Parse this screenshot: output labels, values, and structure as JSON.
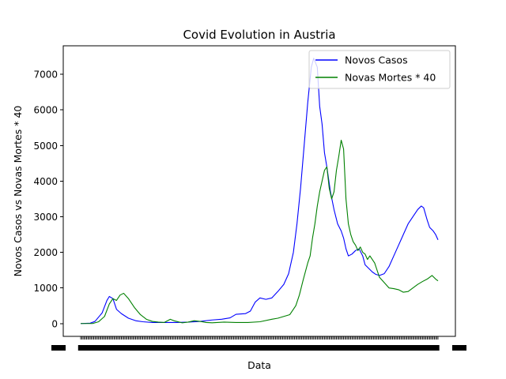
{
  "chart_data": {
    "type": "line",
    "title": "Covid Evolution in Austria",
    "xlabel": "Data",
    "ylabel": "Novos Casos vs Novas Mortes * 40",
    "ylim": [
      -360,
      7800
    ],
    "y_ticks": [
      0,
      1000,
      2000,
      3000,
      4000,
      5000,
      6000,
      7000
    ],
    "y_tick_labels": [
      "0",
      "1000",
      "2000",
      "3000",
      "4000",
      "5000",
      "6000",
      "7000"
    ],
    "x_tick_labels_note": "Daily date tick labels are overprinted into an illegible band",
    "x_tick_count": 300,
    "grid": false,
    "legend": "top-right",
    "colors": {
      "casos": "#0000ff",
      "mortes": "#008000"
    },
    "x_points": 300,
    "series": [
      {
        "name": "Novos Casos",
        "color": "#0000ff",
        "points": [
          [
            0,
            0
          ],
          [
            8,
            10
          ],
          [
            12,
            60
          ],
          [
            18,
            300
          ],
          [
            22,
            650
          ],
          [
            24,
            760
          ],
          [
            27,
            700
          ],
          [
            30,
            400
          ],
          [
            34,
            280
          ],
          [
            40,
            150
          ],
          [
            46,
            80
          ],
          [
            52,
            50
          ],
          [
            60,
            30
          ],
          [
            70,
            30
          ],
          [
            80,
            30
          ],
          [
            90,
            40
          ],
          [
            100,
            60
          ],
          [
            110,
            100
          ],
          [
            118,
            120
          ],
          [
            125,
            160
          ],
          [
            130,
            260
          ],
          [
            138,
            280
          ],
          [
            142,
            350
          ],
          [
            146,
            600
          ],
          [
            150,
            720
          ],
          [
            155,
            680
          ],
          [
            160,
            720
          ],
          [
            165,
            900
          ],
          [
            170,
            1100
          ],
          [
            174,
            1400
          ],
          [
            178,
            2000
          ],
          [
            181,
            2800
          ],
          [
            184,
            3800
          ],
          [
            187,
            5000
          ],
          [
            190,
            6200
          ],
          [
            193,
            7200
          ],
          [
            195,
            7450
          ],
          [
            198,
            7200
          ],
          [
            200,
            6100
          ],
          [
            202,
            5600
          ],
          [
            204,
            4800
          ],
          [
            206,
            4400
          ],
          [
            209,
            3700
          ],
          [
            212,
            3200
          ],
          [
            215,
            2800
          ],
          [
            218,
            2600
          ],
          [
            220,
            2400
          ],
          [
            222,
            2100
          ],
          [
            224,
            1900
          ],
          [
            227,
            1950
          ],
          [
            230,
            2050
          ],
          [
            233,
            2100
          ],
          [
            236,
            1900
          ],
          [
            238,
            1650
          ],
          [
            241,
            1550
          ],
          [
            244,
            1450
          ],
          [
            247,
            1380
          ],
          [
            250,
            1350
          ],
          [
            254,
            1400
          ],
          [
            258,
            1600
          ],
          [
            262,
            1900
          ],
          [
            266,
            2200
          ],
          [
            270,
            2500
          ],
          [
            274,
            2800
          ],
          [
            278,
            3000
          ],
          [
            282,
            3200
          ],
          [
            285,
            3300
          ],
          [
            287,
            3250
          ],
          [
            290,
            2900
          ],
          [
            292,
            2700
          ],
          [
            295,
            2600
          ],
          [
            297,
            2500
          ],
          [
            299,
            2350
          ]
        ]
      },
      {
        "name": "Novas Mortes * 40",
        "color": "#008000",
        "points": [
          [
            0,
            0
          ],
          [
            10,
            0
          ],
          [
            15,
            50
          ],
          [
            20,
            200
          ],
          [
            24,
            550
          ],
          [
            27,
            700
          ],
          [
            30,
            650
          ],
          [
            33,
            800
          ],
          [
            36,
            850
          ],
          [
            40,
            700
          ],
          [
            45,
            450
          ],
          [
            50,
            250
          ],
          [
            55,
            120
          ],
          [
            60,
            60
          ],
          [
            65,
            40
          ],
          [
            70,
            30
          ],
          [
            75,
            120
          ],
          [
            78,
            80
          ],
          [
            85,
            20
          ],
          [
            90,
            40
          ],
          [
            95,
            80
          ],
          [
            100,
            60
          ],
          [
            105,
            30
          ],
          [
            110,
            20
          ],
          [
            120,
            40
          ],
          [
            130,
            30
          ],
          [
            140,
            30
          ],
          [
            150,
            50
          ],
          [
            160,
            120
          ],
          [
            165,
            150
          ],
          [
            170,
            200
          ],
          [
            175,
            250
          ],
          [
            180,
            500
          ],
          [
            183,
            800
          ],
          [
            186,
            1200
          ],
          [
            190,
            1700
          ],
          [
            192,
            1900
          ],
          [
            194,
            2400
          ],
          [
            196,
            2800
          ],
          [
            198,
            3300
          ],
          [
            200,
            3700
          ],
          [
            202,
            4000
          ],
          [
            204,
            4300
          ],
          [
            206,
            4400
          ],
          [
            208,
            3800
          ],
          [
            210,
            3500
          ],
          [
            212,
            3700
          ],
          [
            214,
            4300
          ],
          [
            216,
            4700
          ],
          [
            218,
            5150
          ],
          [
            220,
            4900
          ],
          [
            222,
            3500
          ],
          [
            224,
            2800
          ],
          [
            226,
            2500
          ],
          [
            228,
            2300
          ],
          [
            230,
            2200
          ],
          [
            232,
            2050
          ],
          [
            234,
            2150
          ],
          [
            236,
            2000
          ],
          [
            238,
            1950
          ],
          [
            240,
            1800
          ],
          [
            242,
            1900
          ],
          [
            244,
            1800
          ],
          [
            246,
            1700
          ],
          [
            248,
            1500
          ],
          [
            250,
            1300
          ],
          [
            254,
            1150
          ],
          [
            258,
            1000
          ],
          [
            262,
            980
          ],
          [
            266,
            950
          ],
          [
            270,
            880
          ],
          [
            274,
            900
          ],
          [
            278,
            1000
          ],
          [
            282,
            1100
          ],
          [
            286,
            1180
          ],
          [
            290,
            1250
          ],
          [
            294,
            1350
          ],
          [
            297,
            1250
          ],
          [
            299,
            1200
          ]
        ]
      }
    ]
  }
}
